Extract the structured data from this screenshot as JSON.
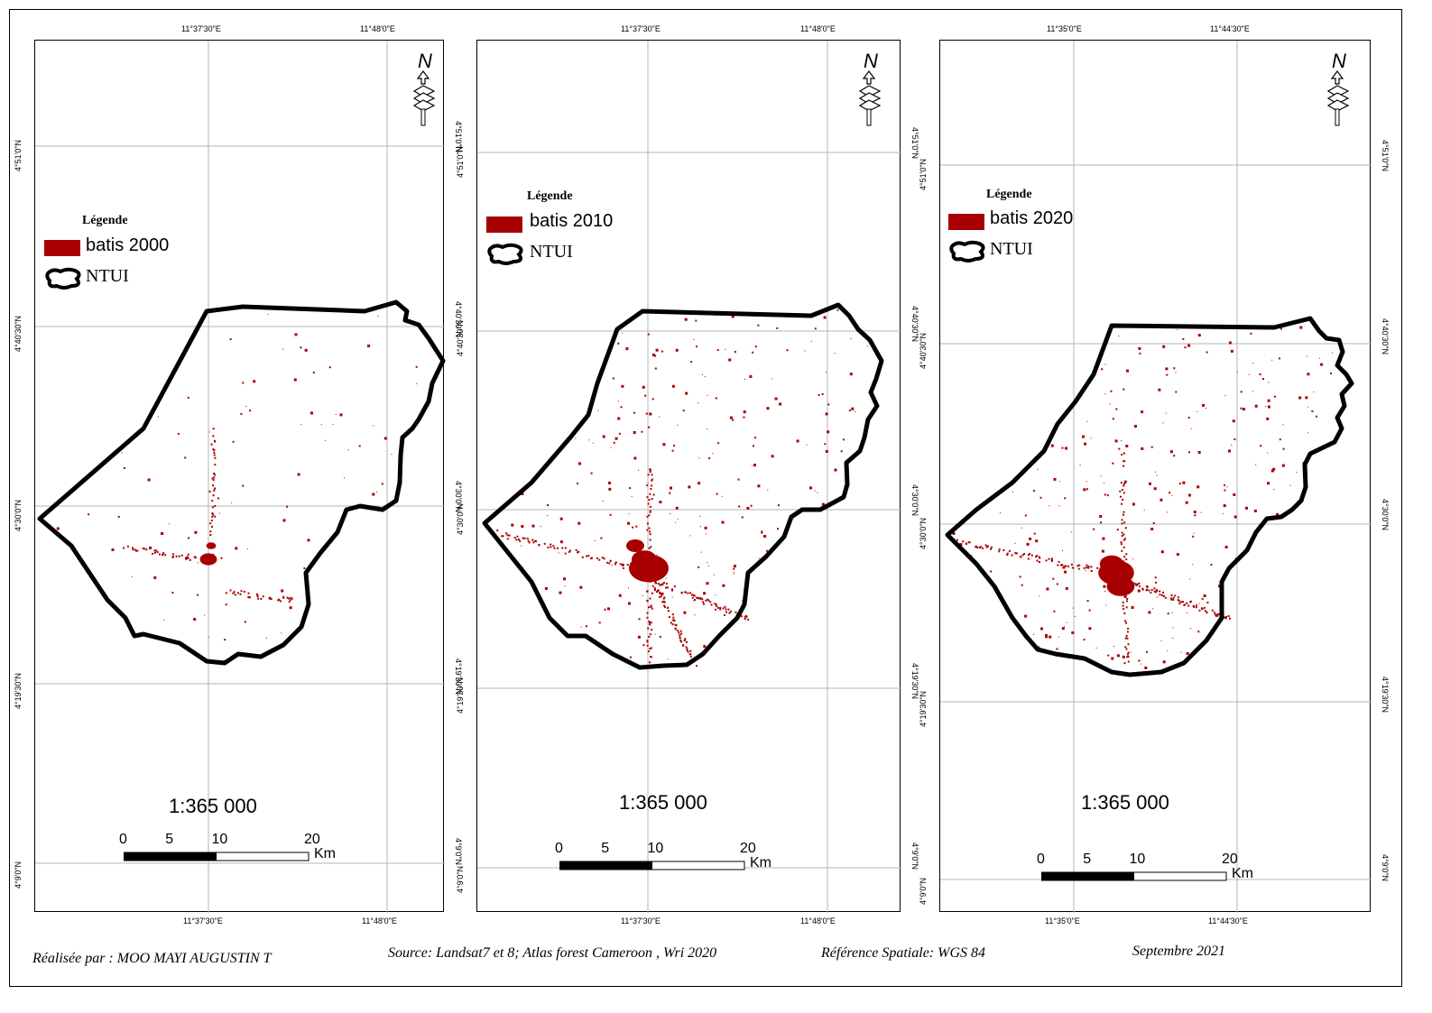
{
  "colors": {
    "builtup": "#a80000",
    "boundary": "#000000",
    "grid": "#b4b4b4"
  },
  "icons": {
    "north_arrow": "north-arrow-icon",
    "boundary_symbol": "boundary-outline-icon"
  },
  "panels": [
    {
      "id": "2000",
      "top_coords": [
        "11°37'30\"E",
        "11°48'0\"E"
      ],
      "bottom_coords": [
        "11°37'30\"E",
        "11°48'0\"E"
      ],
      "left_coords": [
        "4°51'0\"N",
        "4°40'30\"N",
        "4°30'0\"N",
        "4°19'30\"N",
        "4°9'0\"N"
      ],
      "right_coords": [
        "4°51'0\"N",
        "4°40'30\"N",
        "4°30'0\"N",
        "4°19'30\"N",
        "4°9'0\"N"
      ],
      "legend_title": "Légende",
      "legend_builtup": "batis 2000",
      "legend_boundary": "NTUI",
      "north_label": "N",
      "scale_ratio": "1:365 000",
      "scale_ticks": [
        "0",
        "5",
        "10",
        "20"
      ],
      "scale_unit": "Km"
    },
    {
      "id": "2010",
      "top_coords": [
        "11°37'30\"E",
        "11°48'0\"E"
      ],
      "bottom_coords": [
        "11°37'30\"E",
        "11°48'0\"E"
      ],
      "left_coords": [
        "4°51'0\"N",
        "4°40'30\"N",
        "4°30'0\"N",
        "4°19'30\"N",
        "4°9'0\"N"
      ],
      "right_coords": [
        "4°51'0\"N",
        "4°40'30\"N",
        "4°30'0\"N",
        "4°19'30\"N",
        "4°9'0\"N"
      ],
      "legend_title": "Légende",
      "legend_builtup": "batis 2010",
      "legend_boundary": "NTUI",
      "north_label": "N",
      "scale_ratio": "1:365 000",
      "scale_ticks": [
        "0",
        "5",
        "10",
        "20"
      ],
      "scale_unit": "Km"
    },
    {
      "id": "2020",
      "top_coords": [
        "11°35'0\"E",
        "11°44'30\"E"
      ],
      "bottom_coords": [
        "11°35'0\"E",
        "11°44'30\"E"
      ],
      "left_coords": [
        "4°51'0\"N",
        "4°40'30\"N",
        "4°30'0\"N",
        "4°19'30\"N",
        "4°9'0\"N"
      ],
      "right_coords": [
        "4°51'0\"N",
        "4°40'30\"N",
        "4°30'0\"N",
        "4°19'30\"N",
        "4°9'0\"N"
      ],
      "legend_title": "Légende",
      "legend_builtup": "batis 2020",
      "legend_boundary": "NTUI",
      "north_label": "N",
      "scale_ratio": "1:365 000",
      "scale_ticks": [
        "0",
        "5",
        "10",
        "20"
      ],
      "scale_unit": "Km"
    }
  ],
  "footer": {
    "author": "Réalisée par : MOO MAYI AUGUSTIN T",
    "source": "Source: Landsat7 et 8; Atlas forest Cameroon , Wri 2020",
    "reference": "Référence Spatiale: WGS 84",
    "date": "Septembre 2021"
  }
}
